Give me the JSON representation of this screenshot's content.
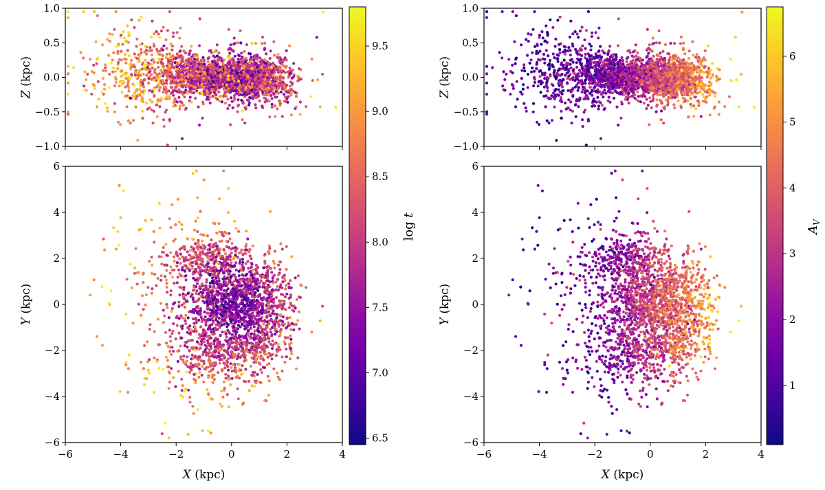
{
  "chart_data": [
    {
      "id": "left_top",
      "type": "scatter",
      "title": "",
      "xlabel": "",
      "ylabel_var": "Z",
      "ylabel_unit": "(kpc)",
      "xlim": [
        -6,
        4
      ],
      "ylim": [
        -1.0,
        1.0
      ],
      "xticks": [
        -6,
        -4,
        -2,
        0,
        2,
        4
      ],
      "xtick_labels": [],
      "yticks": [
        -1.0,
        -0.5,
        0.0,
        0.5,
        1.0
      ],
      "ytick_labels": [
        "−1.0",
        "−0.5",
        "0.0",
        "0.5",
        "1.0"
      ],
      "color_variable": "log t",
      "point_count": 3200
    },
    {
      "id": "left_bottom",
      "type": "scatter",
      "title": "",
      "xlabel_var": "X",
      "xlabel_unit": "(kpc)",
      "ylabel_var": "Y",
      "ylabel_unit": "(kpc)",
      "xlim": [
        -6,
        4
      ],
      "ylim": [
        -6,
        6
      ],
      "xticks": [
        -6,
        -4,
        -2,
        0,
        2,
        4
      ],
      "xtick_labels": [
        "−6",
        "−4",
        "−2",
        "0",
        "2",
        "4"
      ],
      "yticks": [
        -6,
        -4,
        -2,
        0,
        2,
        4,
        6
      ],
      "ytick_labels": [
        "−6",
        "−4",
        "−2",
        "0",
        "2",
        "4",
        "6"
      ],
      "color_variable": "log t",
      "point_count": 2400
    },
    {
      "id": "right_top",
      "type": "scatter",
      "title": "",
      "xlabel": "",
      "ylabel_var": "Z",
      "ylabel_unit": "(kpc)",
      "xlim": [
        -6,
        4
      ],
      "ylim": [
        -1.0,
        1.0
      ],
      "xticks": [
        -6,
        -4,
        -2,
        0,
        2,
        4
      ],
      "xtick_labels": [],
      "yticks": [
        -1.0,
        -0.5,
        0.0,
        0.5,
        1.0
      ],
      "ytick_labels": [
        "−1.0",
        "−0.5",
        "0.0",
        "0.5",
        "1.0"
      ],
      "color_variable": "A_V",
      "point_count": 3200
    },
    {
      "id": "right_bottom",
      "type": "scatter",
      "title": "",
      "xlabel_var": "X",
      "xlabel_unit": "(kpc)",
      "ylabel_var": "Y",
      "ylabel_unit": "(kpc)",
      "xlim": [
        -6,
        4
      ],
      "ylim": [
        -6,
        6
      ],
      "xticks": [
        -6,
        -4,
        -2,
        0,
        2,
        4
      ],
      "xtick_labels": [
        "−6",
        "−4",
        "−2",
        "0",
        "2",
        "4"
      ],
      "yticks": [
        -6,
        -4,
        -2,
        0,
        2,
        4,
        6
      ],
      "ytick_labels": [
        "−6",
        "−4",
        "−2",
        "0",
        "2",
        "4",
        "6"
      ],
      "color_variable": "A_V",
      "point_count": 2400
    }
  ],
  "colorbars": [
    {
      "id": "cbar_logt",
      "label_main": "log",
      "label_var": "t",
      "range": [
        6.45,
        9.8
      ],
      "ticks": [
        6.5,
        7.0,
        7.5,
        8.0,
        8.5,
        9.0,
        9.5
      ],
      "tick_labels": [
        "6.5",
        "7.0",
        "7.5",
        "8.0",
        "8.5",
        "9.0",
        "9.5"
      ],
      "colormap": "plasma"
    },
    {
      "id": "cbar_av",
      "label_var": "A",
      "label_sub": "V",
      "range": [
        0.1,
        6.75
      ],
      "ticks": [
        1,
        2,
        3,
        4,
        5,
        6
      ],
      "tick_labels": [
        "1",
        "2",
        "3",
        "4",
        "5",
        "6"
      ],
      "colormap": "plasma"
    }
  ],
  "colormap_stops": [
    "#0d0887",
    "#41049d",
    "#6a00a8",
    "#8f0da4",
    "#b12a90",
    "#cc4778",
    "#e16462",
    "#f2844b",
    "#fca636",
    "#fcce25",
    "#f0f921"
  ]
}
